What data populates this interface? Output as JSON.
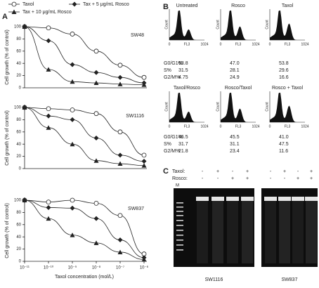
{
  "panel_labels": [
    "A",
    "B",
    "C"
  ],
  "chart_data": [
    {
      "type": "line",
      "label": "SW48",
      "ylabel": "Cell growth (% of control)",
      "log_x": true,
      "xlim": [
        1e-11,
        1e-06
      ],
      "ylim": [
        0,
        100
      ],
      "yticks": [
        0,
        20,
        40,
        60,
        80,
        100
      ],
      "x": [
        1e-11,
        1e-10,
        1e-09,
        1e-08,
        1e-07,
        1e-06
      ],
      "series": [
        {
          "name": "Taxol",
          "marker": "open-circle",
          "color": "#222222",
          "values": [
            100,
            98,
            88,
            60,
            37,
            17
          ]
        },
        {
          "name": "Tax + 5 μg/mL Rosco",
          "marker": "diamond",
          "color": "#222222",
          "values": [
            100,
            77,
            38,
            25,
            17,
            8
          ]
        },
        {
          "name": "Tax + 10 μg/mL Rosco",
          "marker": "triangle",
          "color": "#222222",
          "values": [
            100,
            30,
            10,
            8,
            6,
            5
          ]
        }
      ]
    },
    {
      "type": "line",
      "label": "SW1116",
      "ylabel": "Cell growth (% of control)",
      "log_x": true,
      "xlim": [
        1e-11,
        1e-06
      ],
      "ylim": [
        0,
        100
      ],
      "yticks": [
        0,
        20,
        40,
        60,
        80,
        100
      ],
      "x": [
        1e-11,
        1e-10,
        1e-09,
        1e-08,
        1e-07,
        1e-06
      ],
      "series": [
        {
          "marker": "open-circle",
          "color": "#222222",
          "values": [
            100,
            98,
            96,
            90,
            60,
            22
          ]
        },
        {
          "marker": "diamond",
          "color": "#222222",
          "values": [
            100,
            86,
            80,
            50,
            22,
            12
          ]
        },
        {
          "marker": "triangle",
          "color": "#222222",
          "values": [
            100,
            67,
            40,
            13,
            8,
            5
          ]
        }
      ]
    },
    {
      "type": "line",
      "label": "SW837",
      "ylabel": "Cell growth (% of control)",
      "xlabel": "Taxol concentration (mol/L)",
      "log_x": true,
      "xlim": [
        1e-11,
        1e-06
      ],
      "ylim": [
        0,
        100
      ],
      "yticks": [
        0,
        20,
        40,
        60,
        80,
        100
      ],
      "xticks": [
        {
          "value": 1e-11,
          "label": "10⁻¹¹"
        },
        {
          "value": 1e-10,
          "label": "10⁻¹⁰"
        },
        {
          "value": 1e-09,
          "label": "10⁻⁹"
        },
        {
          "value": 1e-08,
          "label": "10⁻⁸"
        },
        {
          "value": 1e-07,
          "label": "10⁻⁷"
        },
        {
          "value": 1e-06,
          "label": "10⁻⁶"
        }
      ],
      "x": [
        1e-11,
        1e-10,
        1e-09,
        1e-08,
        1e-07,
        1e-06
      ],
      "series": [
        {
          "marker": "open-circle",
          "color": "#222222",
          "values": [
            100,
            97,
            100,
            95,
            75,
            12
          ]
        },
        {
          "marker": "diamond",
          "color": "#222222",
          "values": [
            100,
            88,
            87,
            70,
            35,
            6
          ]
        },
        {
          "marker": "triangle",
          "color": "#222222",
          "values": [
            100,
            70,
            43,
            30,
            15,
            3
          ]
        }
      ]
    }
  ],
  "flow": {
    "axis": {
      "y": "Count",
      "x": "FL3",
      "min": "0",
      "max": "1024"
    },
    "stat_labels": [
      "G0/G1%",
      "S%",
      "G2/M%"
    ],
    "rows": [
      [
        {
          "title": "Untreated",
          "stats": [
            "63.8",
            "31.5",
            "4.75"
          ]
        },
        {
          "title": "Rosco",
          "stats": [
            "47.0",
            "28.1",
            "24.9"
          ]
        },
        {
          "title": "Taxol",
          "stats": [
            "53.8",
            "29.6",
            "16.6"
          ]
        }
      ],
      [
        {
          "title": "Taxol/Rosco",
          "stats": [
            "46.5",
            "31.7",
            "21.8"
          ]
        },
        {
          "title": "Rosco/Taxol",
          "stats": [
            "45.5",
            "31.1",
            "23.4"
          ]
        },
        {
          "title": "Rosco + Taxol",
          "stats": [
            "41.0",
            "47.5",
            "11.6"
          ]
        }
      ]
    ]
  },
  "gel": {
    "row_labels": [
      "Taxol:",
      "Rosco:"
    ],
    "marker": "M",
    "gels": [
      {
        "name": "SW1116",
        "taxol": [
          "-",
          "+",
          "-",
          "+"
        ],
        "rosco": [
          "-",
          "-",
          "+",
          "+"
        ]
      },
      {
        "name": "SW837",
        "taxol": [
          "-",
          "+",
          "-",
          "+"
        ],
        "rosco": [
          "-",
          "-",
          "+",
          "+"
        ]
      }
    ]
  }
}
